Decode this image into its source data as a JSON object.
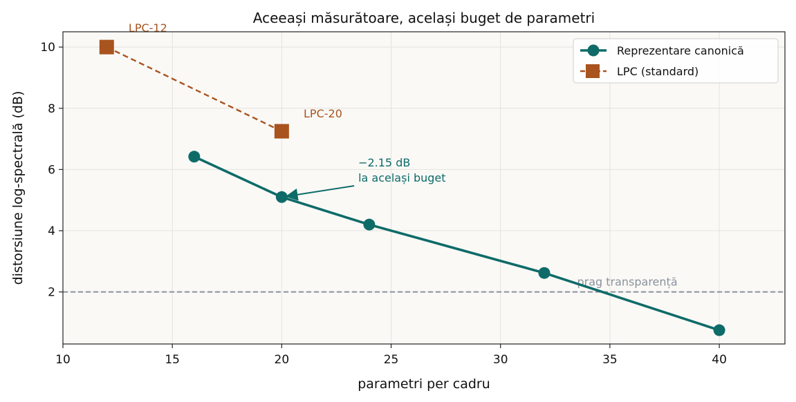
{
  "chart_data": {
    "type": "line",
    "title": "Aceeași măsurătoare, același buget de parametri",
    "xlabel": "parametri per cadru",
    "ylabel": "distorsiune log-spectrală (dB)",
    "xlim": [
      10,
      43
    ],
    "ylim": [
      0.3,
      10.5
    ],
    "xticks": [
      10,
      15,
      20,
      25,
      30,
      35,
      40
    ],
    "yticks": [
      2,
      4,
      6,
      8,
      10
    ],
    "grid": true,
    "legend_position": "top-right",
    "series": [
      {
        "name": "Reprezentare canonică",
        "color": "#0e6b68",
        "line_style": "solid",
        "marker": "circle",
        "x": [
          16,
          20,
          24,
          32,
          40
        ],
        "y": [
          6.42,
          5.1,
          4.2,
          2.62,
          0.75
        ]
      },
      {
        "name": "LPC (standard)",
        "color": "#a9531e",
        "line_style": "dashed",
        "marker": "square",
        "x": [
          12,
          20
        ],
        "y": [
          10.0,
          7.25
        ]
      }
    ],
    "reference_lines": [
      {
        "y": 2.0,
        "label": "prag transparență",
        "color": "#8a929c",
        "line_style": "dashed"
      }
    ],
    "annotations": [
      {
        "text": "LPC-12",
        "x": 13.0,
        "y": 10.5,
        "color": "#a9531e"
      },
      {
        "text": "LPC-20",
        "x": 21.0,
        "y": 7.7,
        "color": "#a9531e"
      },
      {
        "lines": [
          "−2.15 dB",
          "la același buget"
        ],
        "x": 23.5,
        "y": 6.1,
        "arrow_to": {
          "x": 20,
          "y": 5.1
        },
        "color": "#0e6b68"
      }
    ],
    "colors": {
      "plot_background": "#faf9f6",
      "axes": "#222222"
    }
  }
}
